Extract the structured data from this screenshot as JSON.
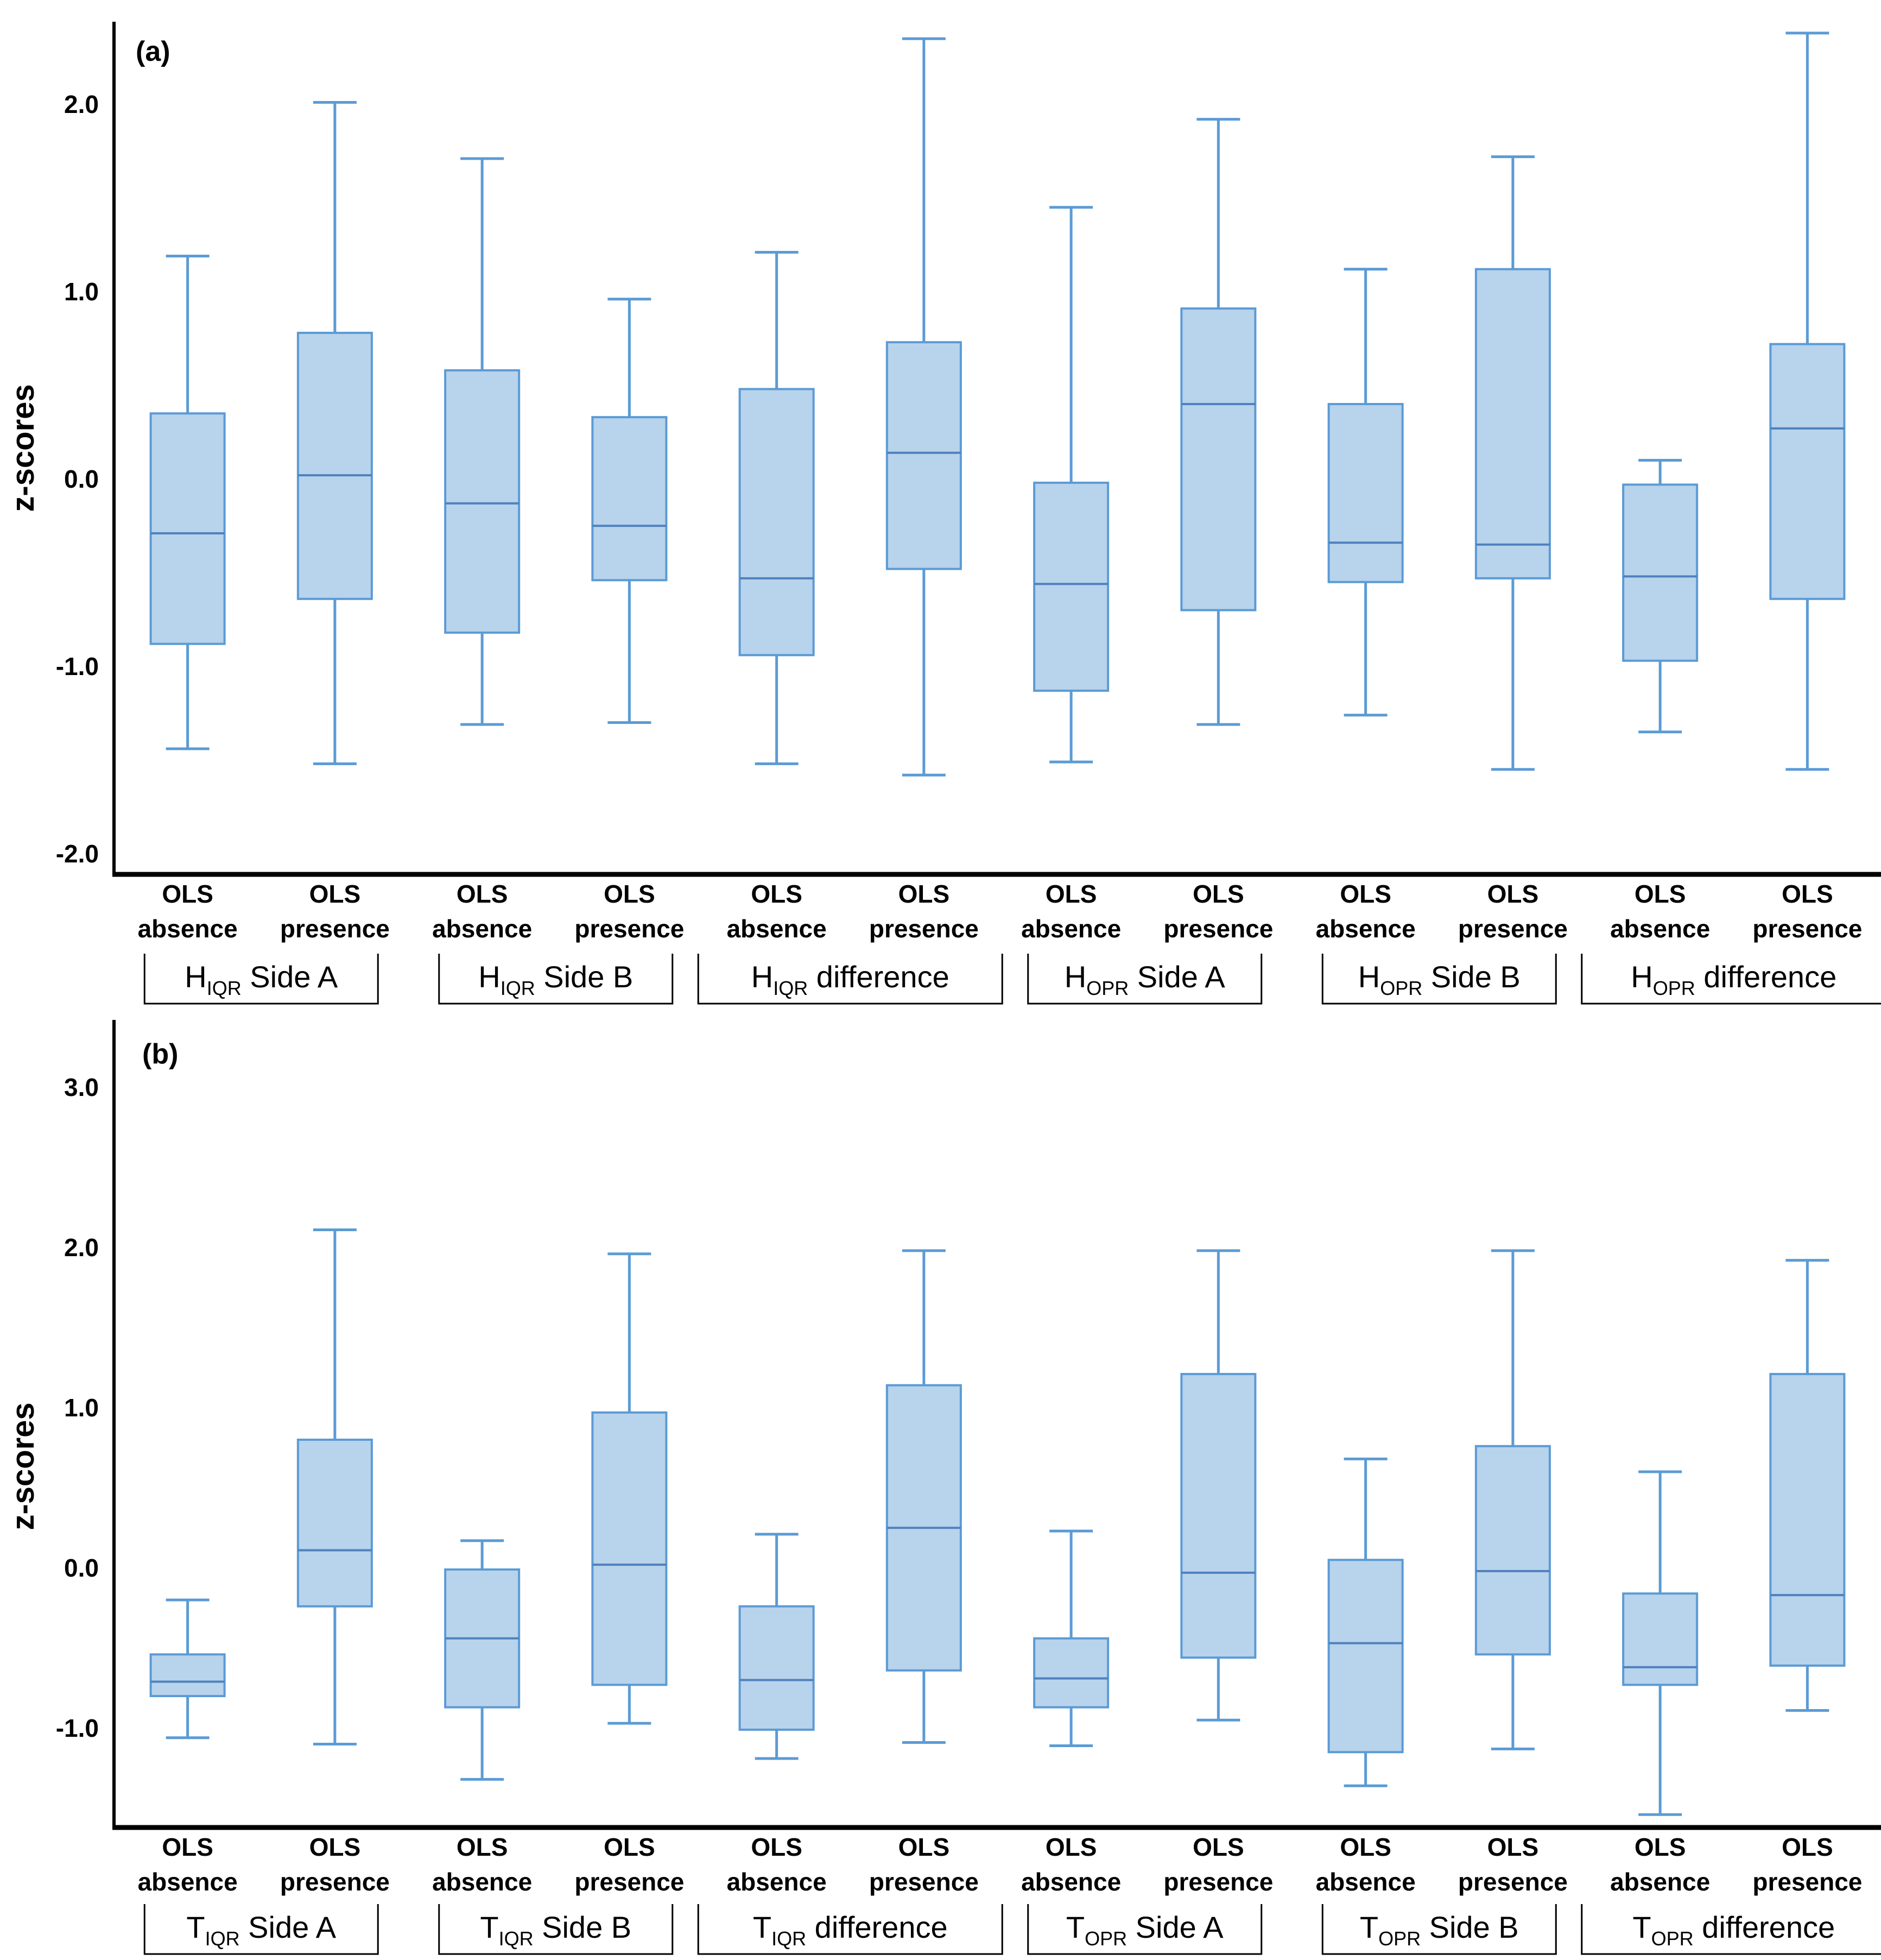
{
  "figure": {
    "ylabel": "z-scores",
    "x_condition_line1": "OLS",
    "conditions": [
      "absence",
      "presence"
    ]
  },
  "colors": {
    "box_fill": "#B8D3EC",
    "box_stroke": "#5B9BD5",
    "median_stroke": "#4F81BD",
    "whisker_stroke": "#5B9BD5",
    "axis_color": "#000000",
    "text_color": "#000000",
    "group_label_box_border": "#000000"
  },
  "chart_data": [
    {
      "type": "box",
      "panel_label": "(a)",
      "ylabel": "z-scores",
      "grid": false,
      "legend_position": "none",
      "ylim": [
        -2.11,
        2.44
      ],
      "ytick_labels": [
        "2.0",
        "1.0",
        "0.0",
        "-1.0",
        "-2.0"
      ],
      "yticks": [
        2.0,
        1.0,
        0.0,
        -1.0,
        -2.0
      ],
      "groups": [
        {
          "prefix": "H",
          "sub": "IQR",
          "rest": "Side A"
        },
        {
          "prefix": "H",
          "sub": "IQR",
          "rest": "Side B"
        },
        {
          "prefix": "H",
          "sub": "IQR",
          "rest": "difference"
        },
        {
          "prefix": "H",
          "sub": "OPR",
          "rest": "Side A"
        },
        {
          "prefix": "H",
          "sub": "OPR",
          "rest": "Side B"
        },
        {
          "prefix": "H",
          "sub": "OPR",
          "rest": "difference"
        }
      ],
      "boxes": [
        {
          "group": "H_IQR Side A",
          "condition": "OLS absence",
          "whisker_low": -1.44,
          "q1": -0.88,
          "median": -0.29,
          "q3": 0.35,
          "whisker_high": 1.19
        },
        {
          "group": "H_IQR Side A",
          "condition": "OLS presence",
          "whisker_low": -1.52,
          "q1": -0.64,
          "median": 0.02,
          "q3": 0.78,
          "whisker_high": 2.01
        },
        {
          "group": "H_IQR Side B",
          "condition": "OLS absence",
          "whisker_low": -1.31,
          "q1": -0.82,
          "median": -0.13,
          "q3": 0.58,
          "whisker_high": 1.71
        },
        {
          "group": "H_IQR Side B",
          "condition": "OLS presence",
          "whisker_low": -1.3,
          "q1": -0.54,
          "median": -0.25,
          "q3": 0.33,
          "whisker_high": 0.96
        },
        {
          "group": "H_IQR difference",
          "condition": "OLS absence",
          "whisker_low": -1.52,
          "q1": -0.94,
          "median": -0.53,
          "q3": 0.48,
          "whisker_high": 1.21
        },
        {
          "group": "H_IQR difference",
          "condition": "OLS presence",
          "whisker_low": -1.58,
          "q1": -0.48,
          "median": 0.14,
          "q3": 0.73,
          "whisker_high": 2.35
        },
        {
          "group": "H_OPR Side A",
          "condition": "OLS absence",
          "whisker_low": -1.51,
          "q1": -1.13,
          "median": -0.56,
          "q3": -0.02,
          "whisker_high": 1.45
        },
        {
          "group": "H_OPR Side A",
          "condition": "OLS presence",
          "whisker_low": -1.31,
          "q1": -0.7,
          "median": 0.4,
          "q3": 0.91,
          "whisker_high": 1.92
        },
        {
          "group": "H_OPR Side B",
          "condition": "OLS absence",
          "whisker_low": -1.26,
          "q1": -0.55,
          "median": -0.34,
          "q3": 0.4,
          "whisker_high": 1.12
        },
        {
          "group": "H_OPR Side B",
          "condition": "OLS presence",
          "whisker_low": -1.55,
          "q1": -0.53,
          "median": -0.35,
          "q3": 1.12,
          "whisker_high": 1.72
        },
        {
          "group": "H_OPR difference",
          "condition": "OLS absence",
          "whisker_low": -1.35,
          "q1": -0.97,
          "median": -0.52,
          "q3": -0.03,
          "whisker_high": 0.1
        },
        {
          "group": "H_OPR difference",
          "condition": "OLS presence",
          "whisker_low": -1.55,
          "q1": -0.64,
          "median": 0.27,
          "q3": 0.72,
          "whisker_high": 2.38
        }
      ]
    },
    {
      "type": "box",
      "panel_label": "(b)",
      "ylabel": "z-scores",
      "grid": false,
      "legend_position": "none",
      "ylim": [
        -1.62,
        3.42
      ],
      "ytick_labels": [
        "3.0",
        "2.0",
        "1.0",
        "0.0",
        "-1.0"
      ],
      "yticks": [
        3.0,
        2.0,
        1.0,
        0.0,
        -1.0
      ],
      "groups": [
        {
          "prefix": "T",
          "sub": "IQR",
          "rest": "Side A"
        },
        {
          "prefix": "T",
          "sub": "IQR",
          "rest": "Side B"
        },
        {
          "prefix": "T",
          "sub": "IQR",
          "rest": "difference"
        },
        {
          "prefix": "T",
          "sub": "OPR",
          "rest": "Side A"
        },
        {
          "prefix": "T",
          "sub": "OPR",
          "rest": "Side B"
        },
        {
          "prefix": "T",
          "sub": "OPR",
          "rest": "difference"
        }
      ],
      "boxes": [
        {
          "group": "T_IQR Side A",
          "condition": "OLS absence",
          "whisker_low": -1.06,
          "q1": -0.8,
          "median": -0.71,
          "q3": -0.54,
          "whisker_high": -0.2
        },
        {
          "group": "T_IQR Side A",
          "condition": "OLS presence",
          "whisker_low": -1.1,
          "q1": -0.24,
          "median": 0.11,
          "q3": 0.8,
          "whisker_high": 2.11
        },
        {
          "group": "T_IQR Side B",
          "condition": "OLS absence",
          "whisker_low": -1.32,
          "q1": -0.87,
          "median": -0.44,
          "q3": -0.01,
          "whisker_high": 0.17
        },
        {
          "group": "T_IQR Side B",
          "condition": "OLS presence",
          "whisker_low": -0.97,
          "q1": -0.73,
          "median": 0.02,
          "q3": 0.97,
          "whisker_high": 1.96
        },
        {
          "group": "T_IQR difference",
          "condition": "OLS absence",
          "whisker_low": -1.19,
          "q1": -1.01,
          "median": -0.7,
          "q3": -0.24,
          "whisker_high": 0.21
        },
        {
          "group": "T_IQR difference",
          "condition": "OLS presence",
          "whisker_low": -1.09,
          "q1": -0.64,
          "median": 0.25,
          "q3": 1.14,
          "whisker_high": 1.98
        },
        {
          "group": "T_OPR Side A",
          "condition": "OLS absence",
          "whisker_low": -1.11,
          "q1": -0.87,
          "median": -0.69,
          "q3": -0.44,
          "whisker_high": 0.23
        },
        {
          "group": "T_OPR Side A",
          "condition": "OLS presence",
          "whisker_low": -0.95,
          "q1": -0.56,
          "median": -0.03,
          "q3": 1.21,
          "whisker_high": 1.98
        },
        {
          "group": "T_OPR Side B",
          "condition": "OLS absence",
          "whisker_low": -1.36,
          "q1": -1.15,
          "median": -0.47,
          "q3": 0.05,
          "whisker_high": 0.68
        },
        {
          "group": "T_OPR Side B",
          "condition": "OLS presence",
          "whisker_low": -1.13,
          "q1": -0.54,
          "median": -0.02,
          "q3": 0.76,
          "whisker_high": 1.98
        },
        {
          "group": "T_OPR difference",
          "condition": "OLS absence",
          "whisker_low": -1.54,
          "q1": -0.73,
          "median": -0.62,
          "q3": -0.16,
          "whisker_high": 0.6
        },
        {
          "group": "T_OPR difference",
          "condition": "OLS presence",
          "whisker_low": -0.89,
          "q1": -0.61,
          "median": -0.17,
          "q3": 1.21,
          "whisker_high": 1.92
        }
      ]
    }
  ]
}
